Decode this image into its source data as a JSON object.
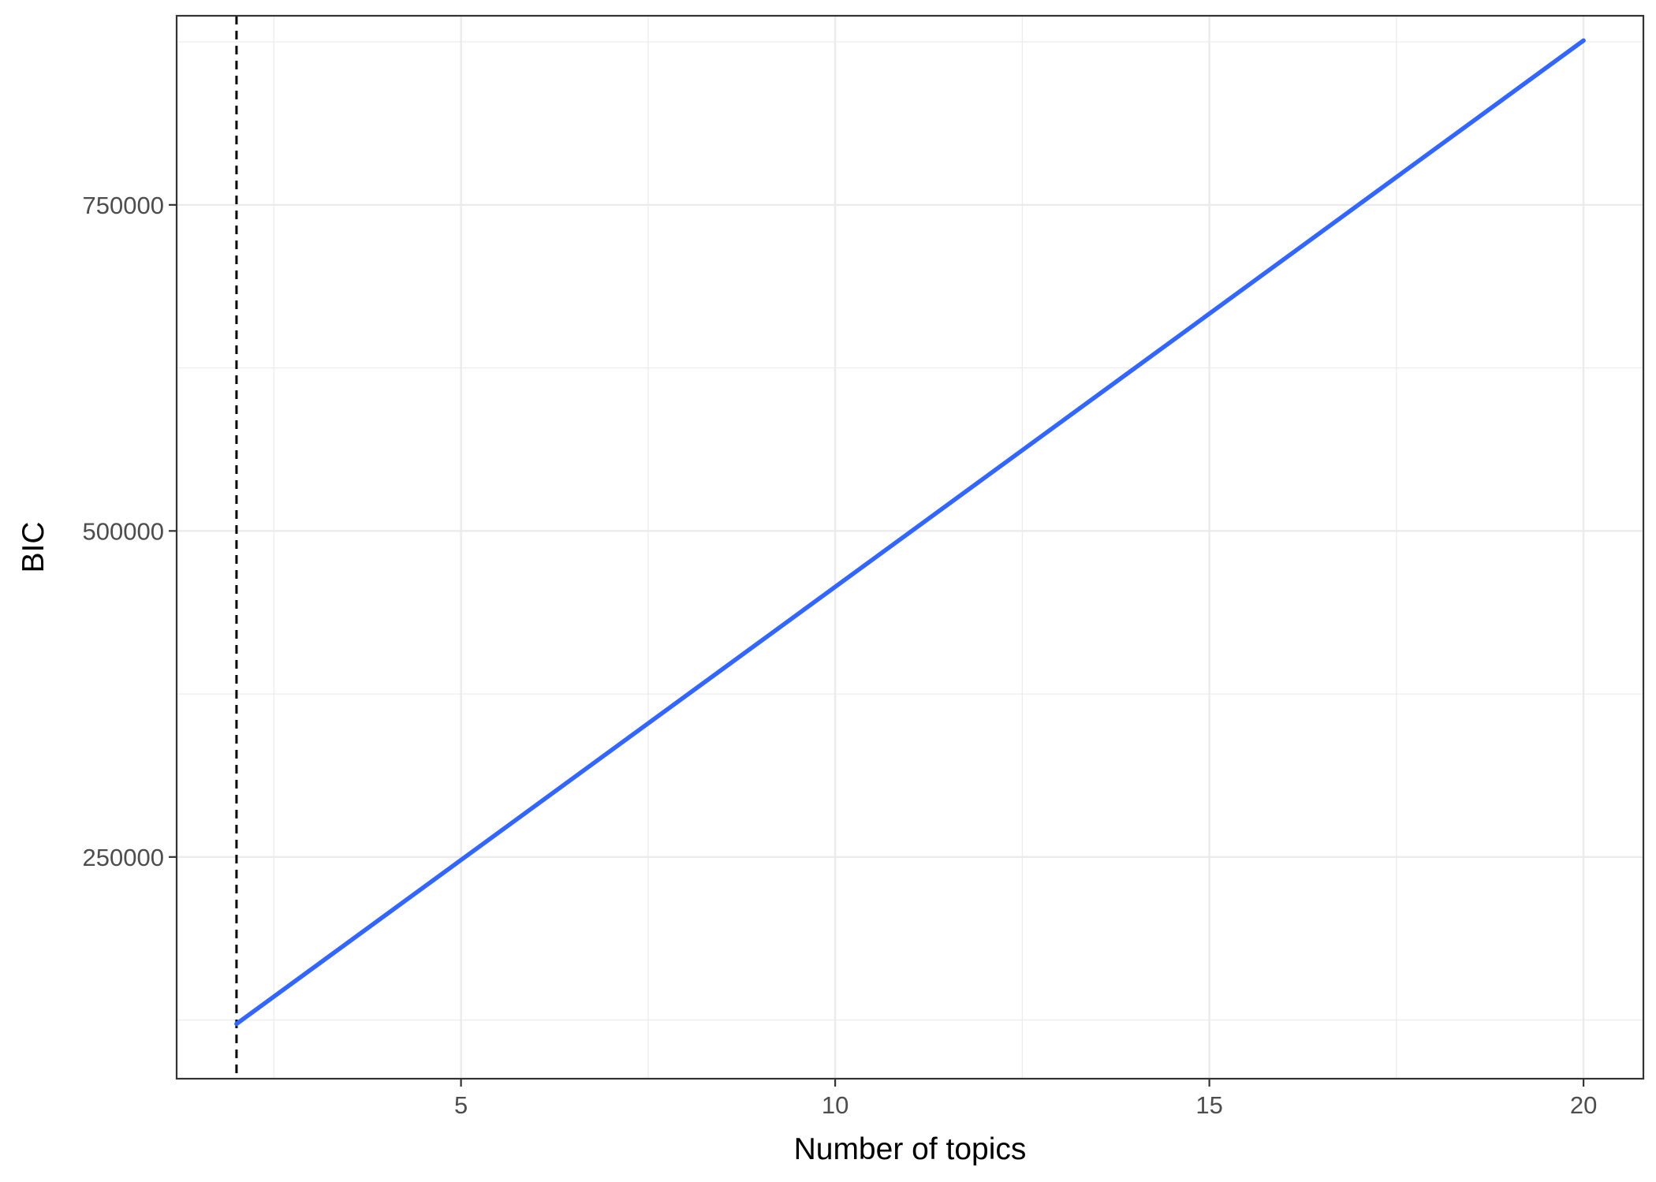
{
  "chart_data": {
    "type": "line",
    "title": "",
    "xlabel": "Number of topics",
    "ylabel": "BIC",
    "xlim": [
      1.2,
      20.8
    ],
    "ylim": [
      80000,
      895000
    ],
    "x_ticks": [
      5,
      10,
      15,
      20
    ],
    "x_minor_ticks": [
      2.5,
      7.5,
      12.5,
      17.5
    ],
    "y_ticks": [
      250000,
      500000,
      750000
    ],
    "y_minor_ticks": [
      125000,
      375000,
      625000,
      875000
    ],
    "x_tick_labels": [
      "5",
      "10",
      "15",
      "20"
    ],
    "y_tick_labels": [
      "250000",
      "500000",
      "750000"
    ],
    "grid": true,
    "legend": "none",
    "series": [
      {
        "x": [
          2,
          20
        ],
        "y": [
          122000,
          876000
        ],
        "color": "#3366ff"
      }
    ],
    "reference_lines": [
      {
        "orientation": "vertical",
        "x": 2,
        "style": "dashed",
        "color": "#000000"
      }
    ]
  }
}
